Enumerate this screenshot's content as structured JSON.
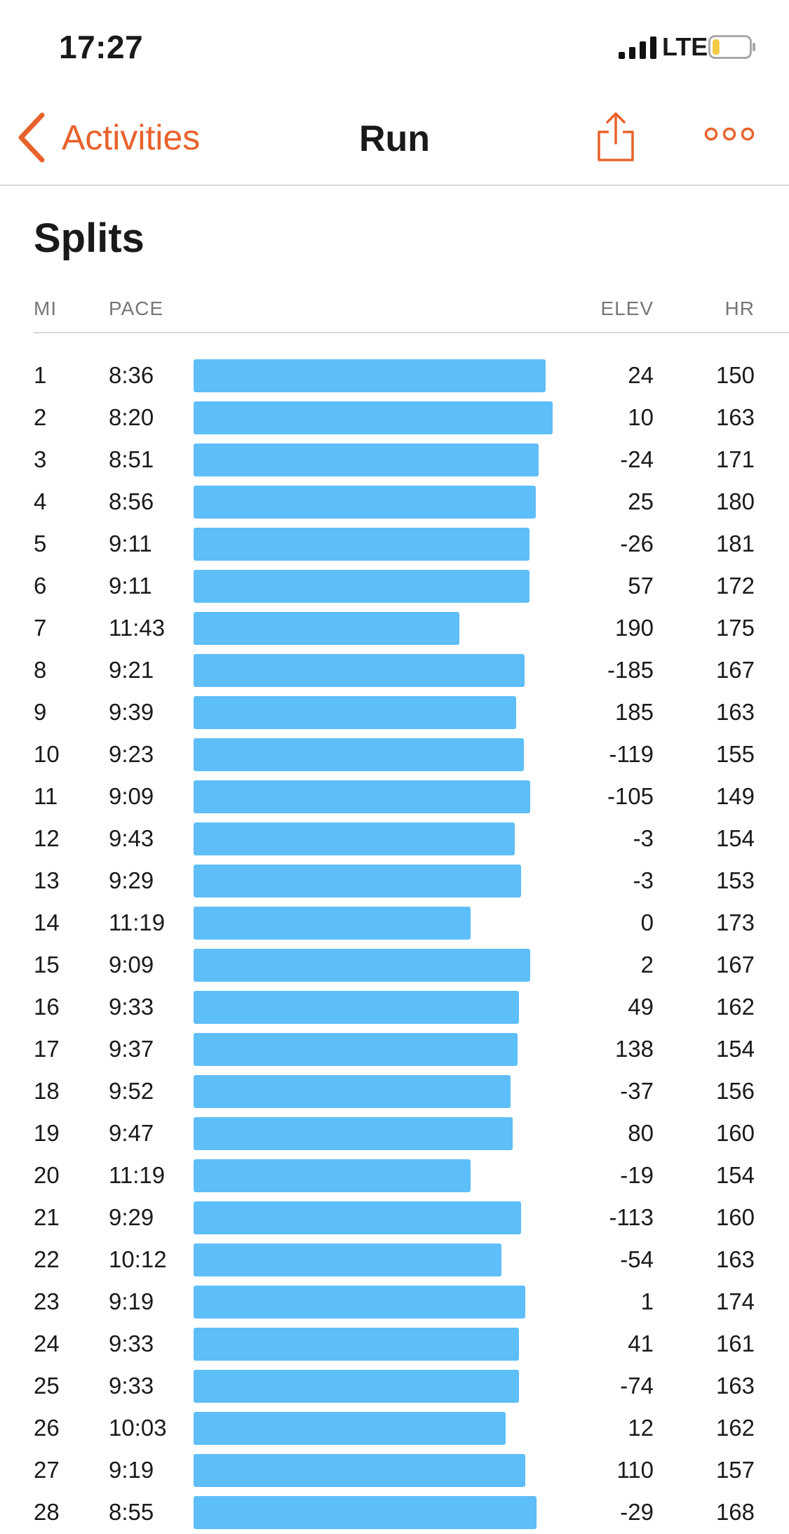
{
  "status_bar": {
    "time": "17:27",
    "network": "LTE",
    "battery_level": 0.2
  },
  "nav": {
    "back_label": "Activities",
    "title": "Run",
    "share_icon": "share-icon",
    "more_icon": "more-icon"
  },
  "section": {
    "title": "Splits"
  },
  "columns": {
    "mi": "MI",
    "pace": "PACE",
    "elev": "ELEV",
    "hr": "HR"
  },
  "colors": {
    "accent": "#e8622c",
    "bar": "#5ebef8",
    "divider": "#d9d9d9",
    "header_text": "#777777"
  },
  "splits": [
    {
      "mi": "1",
      "pace": "8:36",
      "elev": "24",
      "hr": "150"
    },
    {
      "mi": "2",
      "pace": "8:20",
      "elev": "10",
      "hr": "163"
    },
    {
      "mi": "3",
      "pace": "8:51",
      "elev": "-24",
      "hr": "171"
    },
    {
      "mi": "4",
      "pace": "8:56",
      "elev": "25",
      "hr": "180"
    },
    {
      "mi": "5",
      "pace": "9:11",
      "elev": "-26",
      "hr": "181"
    },
    {
      "mi": "6",
      "pace": "9:11",
      "elev": "57",
      "hr": "172"
    },
    {
      "mi": "7",
      "pace": "11:43",
      "elev": "190",
      "hr": "175"
    },
    {
      "mi": "8",
      "pace": "9:21",
      "elev": "-185",
      "hr": "167"
    },
    {
      "mi": "9",
      "pace": "9:39",
      "elev": "185",
      "hr": "163"
    },
    {
      "mi": "10",
      "pace": "9:23",
      "elev": "-119",
      "hr": "155"
    },
    {
      "mi": "11",
      "pace": "9:09",
      "elev": "-105",
      "hr": "149"
    },
    {
      "mi": "12",
      "pace": "9:43",
      "elev": "-3",
      "hr": "154"
    },
    {
      "mi": "13",
      "pace": "9:29",
      "elev": "-3",
      "hr": "153"
    },
    {
      "mi": "14",
      "pace": "11:19",
      "elev": "0",
      "hr": "173"
    },
    {
      "mi": "15",
      "pace": "9:09",
      "elev": "2",
      "hr": "167"
    },
    {
      "mi": "16",
      "pace": "9:33",
      "elev": "49",
      "hr": "162"
    },
    {
      "mi": "17",
      "pace": "9:37",
      "elev": "138",
      "hr": "154"
    },
    {
      "mi": "18",
      "pace": "9:52",
      "elev": "-37",
      "hr": "156"
    },
    {
      "mi": "19",
      "pace": "9:47",
      "elev": "80",
      "hr": "160"
    },
    {
      "mi": "20",
      "pace": "11:19",
      "elev": "-19",
      "hr": "154"
    },
    {
      "mi": "21",
      "pace": "9:29",
      "elev": "-113",
      "hr": "160"
    },
    {
      "mi": "22",
      "pace": "10:12",
      "elev": "-54",
      "hr": "163"
    },
    {
      "mi": "23",
      "pace": "9:19",
      "elev": "1",
      "hr": "174"
    },
    {
      "mi": "24",
      "pace": "9:33",
      "elev": "41",
      "hr": "161"
    },
    {
      "mi": "25",
      "pace": "9:33",
      "elev": "-74",
      "hr": "163"
    },
    {
      "mi": "26",
      "pace": "10:03",
      "elev": "12",
      "hr": "162"
    },
    {
      "mi": "27",
      "pace": "9:19",
      "elev": "110",
      "hr": "157"
    },
    {
      "mi": "28",
      "pace": "8:55",
      "elev": "-29",
      "hr": "168"
    }
  ]
}
